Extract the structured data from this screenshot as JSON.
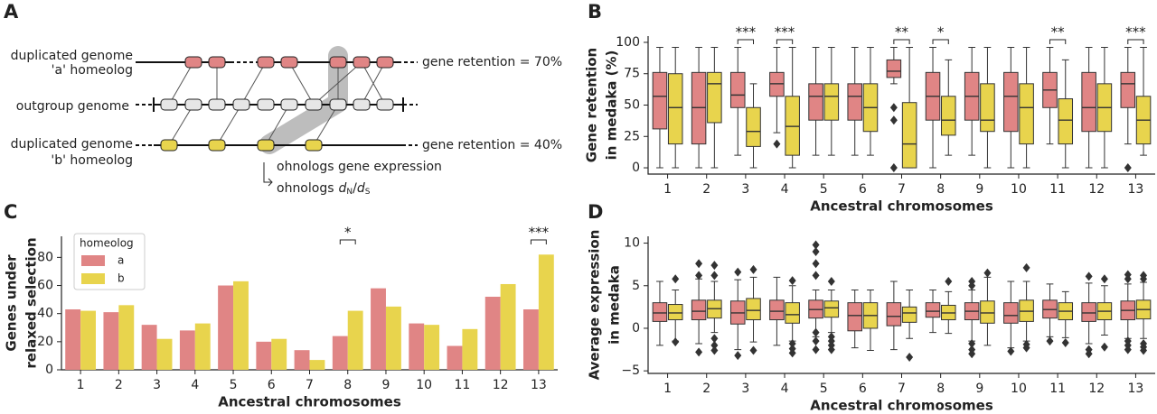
{
  "diagram": {
    "panel": "A",
    "genome_a": [
      "duplicated genome",
      "'a' homeolog"
    ],
    "outgroup": "outgroup genome",
    "genome_b": [
      "duplicated genome",
      "'b' homeolog"
    ],
    "retention_a": "gene retention = 70%",
    "retention_b": "gene retention = 40%",
    "expression": "ohnologs gene expression",
    "dnds": {
      "text": "ohnologs",
      "d": "d",
      "n": "N",
      "slash": "/",
      "s": "S"
    }
  },
  "chart_data": [
    {
      "panel": "B",
      "type": "box",
      "ylabel": [
        "Gene retention",
        "in medaka (%)"
      ],
      "xlabel": "Ancestral chromosomes",
      "categories": [
        "1",
        "2",
        "3",
        "4",
        "5",
        "6",
        "7",
        "8",
        "9",
        "10",
        "11",
        "12",
        "13"
      ],
      "ylim": [
        -5,
        105
      ],
      "yticks": [
        0,
        25,
        50,
        75,
        100
      ],
      "series": [
        {
          "color": "#e08585",
          "whislo": [
            0,
            0,
            10,
            28,
            10,
            10,
            67,
            0,
            10,
            0,
            19,
            0,
            19
          ],
          "q1": [
            31,
            19,
            48,
            57,
            38,
            38,
            72,
            38,
            38,
            29,
            48,
            29,
            48
          ],
          "median": [
            57,
            48,
            58,
            67,
            57,
            57,
            77,
            57,
            57,
            57,
            62,
            48,
            67
          ],
          "q3": [
            76,
            76,
            76,
            76,
            67,
            67,
            86,
            76,
            76,
            76,
            76,
            76,
            76
          ],
          "whishi": [
            96,
            96,
            96,
            96,
            96,
            96,
            96,
            96,
            96,
            96,
            96,
            96,
            96
          ],
          "fliers": [
            [],
            [],
            [],
            [
              19
            ],
            [],
            [],
            [
              48,
              38,
              0
            ],
            [],
            [],
            [],
            [],
            [],
            [
              0
            ]
          ]
        },
        {
          "color": "#e8d44d",
          "whislo": [
            0,
            0,
            0,
            0,
            10,
            10,
            0,
            10,
            0,
            0,
            0,
            0,
            10
          ],
          "q1": [
            19,
            36,
            17,
            10,
            38,
            29,
            0,
            26,
            29,
            19,
            19,
            29,
            19
          ],
          "median": [
            48,
            67,
            29,
            33,
            57,
            48,
            19,
            38,
            38,
            48,
            38,
            48,
            38
          ],
          "q3": [
            75,
            76,
            48,
            57,
            67,
            67,
            52,
            57,
            67,
            67,
            55,
            67,
            57
          ],
          "whishi": [
            96,
            96,
            67,
            96,
            96,
            96,
            96,
            86,
            96,
            96,
            86,
            96,
            96
          ],
          "fliers": [
            [],
            [],
            [],
            [],
            [],
            [],
            [],
            [],
            [],
            [],
            [],
            [],
            []
          ]
        }
      ],
      "annotations": [
        {
          "category": "3",
          "text": "***"
        },
        {
          "category": "4",
          "text": "***"
        },
        {
          "category": "7",
          "text": "**"
        },
        {
          "category": "8",
          "text": "*"
        },
        {
          "category": "11",
          "text": "**"
        },
        {
          "category": "13",
          "text": "***"
        }
      ]
    },
    {
      "panel": "C",
      "type": "bar",
      "ylabel": [
        "Genes under",
        "relaxed selection"
      ],
      "xlabel": "Ancestral chromosomes",
      "categories": [
        "1",
        "2",
        "3",
        "4",
        "5",
        "6",
        "7",
        "8",
        "9",
        "10",
        "11",
        "12",
        "13"
      ],
      "ylim": [
        0,
        95
      ],
      "yticks": [
        0,
        20,
        40,
        60,
        80
      ],
      "legend": "upper left",
      "legend_title": "homeolog",
      "series": [
        {
          "name": "a",
          "color": "#e08585",
          "values": [
            43,
            41,
            32,
            28,
            60,
            20,
            14,
            24,
            58,
            33,
            17,
            52,
            43
          ]
        },
        {
          "name": "b",
          "color": "#e8d44d",
          "values": [
            42,
            46,
            22,
            33,
            63,
            22,
            7,
            42,
            45,
            32,
            29,
            61,
            82
          ]
        }
      ],
      "annotations": [
        {
          "category": "8",
          "text": "*"
        },
        {
          "category": "13",
          "text": "***"
        }
      ]
    },
    {
      "panel": "D",
      "type": "box",
      "ylabel": [
        "Average expression",
        "in medaka"
      ],
      "xlabel": "Ancestral chromosomes",
      "categories": [
        "1",
        "2",
        "3",
        "4",
        "5",
        "6",
        "7",
        "8",
        "9",
        "10",
        "11",
        "12",
        "13"
      ],
      "ylim": [
        -5.3,
        10.8
      ],
      "yticks": [
        {
          "value": -5,
          "label": "−5"
        },
        0,
        5,
        10
      ],
      "series": [
        {
          "color": "#e08585",
          "whislo": [
            -2,
            -1.8,
            -2.5,
            -2,
            -1,
            -2.3,
            -2.5,
            -0.5,
            -1.5,
            -2.3,
            -1,
            -1.8,
            -1.2
          ],
          "q1": [
            0.8,
            1,
            0.5,
            1,
            1.2,
            -0.3,
            0.3,
            1.3,
            1,
            0.6,
            1.2,
            0.8,
            1
          ],
          "median": [
            1.8,
            2,
            1.8,
            2,
            2.2,
            1.5,
            1.4,
            2,
            2,
            1.5,
            2.2,
            1.8,
            2.1
          ],
          "q3": [
            3,
            3.3,
            3.2,
            3.3,
            3.3,
            3,
            3,
            3,
            3,
            3,
            3.3,
            3,
            3.2
          ],
          "whishi": [
            5.5,
            5.8,
            5.7,
            6,
            4.5,
            4.5,
            5.5,
            4.5,
            4.5,
            5.5,
            5.2,
            5.3,
            5.2
          ],
          "fliers": [
            [],
            [
              7.6,
              6.2,
              -2.8
            ],
            [
              6.6,
              -3.2
            ],
            [],
            [
              9.8,
              9,
              7.6,
              6.2,
              -0.5,
              -1.5,
              -2.5
            ],
            [],
            [],
            [],
            [
              5.5,
              5,
              -1.8,
              -2.5,
              -3
            ],
            [
              -2.7
            ],
            [
              -1.5
            ],
            [
              6.1,
              -2.5,
              -3
            ],
            [
              6.3,
              5.8,
              -1.5,
              -2,
              -2.5
            ]
          ]
        },
        {
          "color": "#e8d44d",
          "whislo": [
            -1.5,
            -0.5,
            -1.6,
            -1.5,
            -0.5,
            -2.6,
            -1.2,
            -0.6,
            -2,
            -1.5,
            -1.1,
            -0.8,
            -1.2
          ],
          "q1": [
            1,
            1.2,
            1,
            0.6,
            1.3,
            0,
            0.7,
            1,
            0.6,
            0.8,
            1,
            1,
            1.1
          ],
          "median": [
            1.8,
            2.3,
            2.1,
            1.6,
            2.4,
            1.5,
            1.8,
            1.8,
            1.8,
            2,
            2,
            2,
            2.2
          ],
          "q3": [
            2.8,
            3.3,
            3.5,
            3,
            3.2,
            3,
            2.5,
            2.7,
            3.2,
            3.3,
            3,
            3,
            3.3
          ],
          "whishi": [
            4.5,
            5.5,
            6,
            5,
            4.5,
            4.5,
            4.5,
            4.3,
            6,
            5.5,
            4.3,
            5,
            5.4
          ],
          "fliers": [
            [
              5.8,
              -1.6
            ],
            [
              7.4,
              6.2,
              -1.2,
              -2,
              -2.6
            ],
            [
              6.9,
              -2.6
            ],
            [
              5.6,
              -1.8,
              -2.4,
              -2.9
            ],
            [
              5.5,
              -1,
              -1.5,
              -2,
              -2.5
            ],
            [],
            [
              -3.4
            ],
            [
              5.5
            ],
            [
              6.5
            ],
            [
              7.1,
              -1.9,
              -2.3
            ],
            [
              -1.7
            ],
            [
              5.8,
              -2.2
            ],
            [
              6.2,
              5.8,
              -1.8,
              -2.2,
              -2.6
            ]
          ]
        }
      ]
    }
  ]
}
